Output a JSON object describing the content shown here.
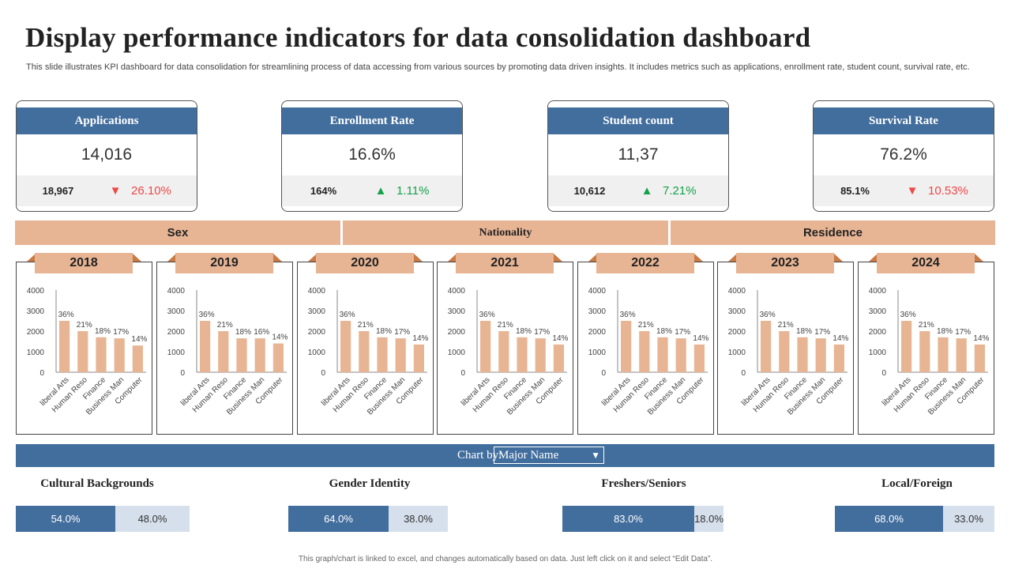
{
  "title": "Display performance indicators for data consolidation dashboard",
  "subtitle": "This slide illustrates KPI dashboard for data consolidation for streamlining process of data accessing from various sources by promoting data driven insights. It includes metrics such as applications, enrollment rate, student count, survival rate, etc.",
  "kpis": [
    {
      "label": "Applications",
      "value": "14,016",
      "previous": "18,967",
      "direction": "down",
      "change": "26.10%"
    },
    {
      "label": "Enrollment  Rate",
      "value": "16.6%",
      "previous": "164%",
      "direction": "up",
      "change": "1.11%"
    },
    {
      "label": "Student count",
      "value": "11,37",
      "previous": "10,612",
      "direction": "up",
      "change": "7.21%"
    },
    {
      "label": "Survival Rate",
      "value": "76.2%",
      "previous": "85.1%",
      "direction": "down",
      "change": "10.53%"
    }
  ],
  "colors": {
    "header": "#426e9e",
    "bar": "#e8b594",
    "up": "#14a24a",
    "down": "#f04848",
    "light": "#d6e0ec"
  },
  "categories": [
    "Sex",
    "Nationality",
    "Residence"
  ],
  "chart_data": [
    {
      "type": "bar",
      "title": "2018",
      "categories": [
        "liberal Arts",
        "Human Reso",
        "Finance",
        "Business Man",
        "Computer"
      ],
      "values": [
        2500,
        2000,
        1700,
        1650,
        1300
      ],
      "labels": [
        "36%",
        "21%",
        "18%",
        "17%",
        "14%"
      ],
      "yticks": [
        0,
        1000,
        2000,
        3000,
        4000
      ],
      "ylim": [
        0,
        4000
      ]
    },
    {
      "type": "bar",
      "title": "2019",
      "categories": [
        "liberal Arts",
        "Human Reso",
        "Finance",
        "Business Man",
        "Computer"
      ],
      "values": [
        2500,
        2000,
        1650,
        1650,
        1400
      ],
      "labels": [
        "36%",
        "21%",
        "18%",
        "16%",
        "14%"
      ],
      "yticks": [
        0,
        1000,
        2000,
        3000,
        4000
      ],
      "ylim": [
        0,
        4000
      ]
    },
    {
      "type": "bar",
      "title": "2020",
      "categories": [
        "liberal Arts",
        "Human Reso",
        "Finance",
        "Business Man",
        "Computer"
      ],
      "values": [
        2500,
        2000,
        1700,
        1650,
        1350
      ],
      "labels": [
        "36%",
        "21%",
        "18%",
        "17%",
        "14%"
      ],
      "yticks": [
        0,
        1000,
        2000,
        3000,
        4000
      ],
      "ylim": [
        0,
        4000
      ]
    },
    {
      "type": "bar",
      "title": "2021",
      "categories": [
        "liberal Arts",
        "Human Reso",
        "Finance",
        "Business Man",
        "Computer"
      ],
      "values": [
        2500,
        2000,
        1700,
        1650,
        1350
      ],
      "labels": [
        "36%",
        "21%",
        "18%",
        "17%",
        "14%"
      ],
      "yticks": [
        0,
        1000,
        2000,
        3000,
        4000
      ],
      "ylim": [
        0,
        4000
      ]
    },
    {
      "type": "bar",
      "title": "2022",
      "categories": [
        "liberal Arts",
        "Human Reso",
        "Finance",
        "Business Man",
        "Computer"
      ],
      "values": [
        2500,
        2000,
        1700,
        1650,
        1350
      ],
      "labels": [
        "36%",
        "21%",
        "18%",
        "17%",
        "14%"
      ],
      "yticks": [
        0,
        1000,
        2000,
        3000,
        4000
      ],
      "ylim": [
        0,
        4000
      ]
    },
    {
      "type": "bar",
      "title": "2023",
      "categories": [
        "liberal Arts",
        "Human Reso",
        "Finance",
        "Business Man",
        "Computer"
      ],
      "values": [
        2500,
        2000,
        1700,
        1650,
        1350
      ],
      "labels": [
        "36%",
        "21%",
        "18%",
        "17%",
        "14%"
      ],
      "yticks": [
        0,
        1000,
        2000,
        3000,
        4000
      ],
      "ylim": [
        0,
        4000
      ]
    },
    {
      "type": "bar",
      "title": "2024",
      "categories": [
        "liberal Arts",
        "Human Reso",
        "Finance",
        "Business Man",
        "Computer"
      ],
      "values": [
        2500,
        2000,
        1700,
        1650,
        1350
      ],
      "labels": [
        "36%",
        "21%",
        "18%",
        "17%",
        "14%"
      ],
      "yticks": [
        0,
        1000,
        2000,
        3000,
        4000
      ],
      "ylim": [
        0,
        4000
      ]
    }
  ],
  "chart_by": {
    "label": "Chart by:",
    "selected": "Major Name"
  },
  "groups": [
    {
      "label": "Cultural Backgrounds",
      "a": "54.0%",
      "b": "48.0%",
      "a_val": 54,
      "b_val": 48
    },
    {
      "label": "Gender Identity",
      "a": "64.0%",
      "b": "38.0%",
      "a_val": 64,
      "b_val": 38
    },
    {
      "label": "Freshers/Seniors",
      "a": "83.0%",
      "b": "18.0%",
      "a_val": 83,
      "b_val": 18
    },
    {
      "label": "Local/Foreign",
      "a": "68.0%",
      "b": "33.0%",
      "a_val": 68,
      "b_val": 33
    }
  ],
  "footer": "This graph/chart is linked to excel, and changes automatically based on data. Just left click on it and select “Edit Data”."
}
